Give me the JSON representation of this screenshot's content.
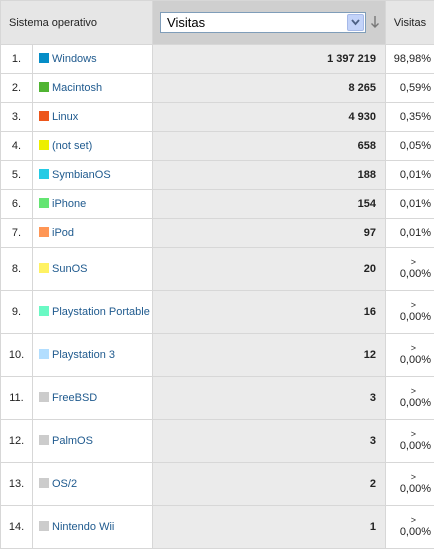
{
  "header": {
    "os_label": "Sistema operativo",
    "metric_select_value": "Visitas",
    "pct_label": "Visitas",
    "sort_icon": "arrow-down-icon",
    "dropdown_icon": "chevron-down-icon"
  },
  "rows": [
    {
      "rank": "1.",
      "os": "Windows",
      "visits": "1 397 219",
      "pct": "98,98%",
      "color": "#058dc7"
    },
    {
      "rank": "2.",
      "os": "Macintosh",
      "visits": "8 265",
      "pct": "0,59%",
      "color": "#50b432"
    },
    {
      "rank": "3.",
      "os": "Linux",
      "visits": "4 930",
      "pct": "0,35%",
      "color": "#ed561b"
    },
    {
      "rank": "4.",
      "os": "(not set)",
      "visits": "658",
      "pct": "0,05%",
      "color": "#edef00"
    },
    {
      "rank": "5.",
      "os": "SymbianOS",
      "visits": "188",
      "pct": "0,01%",
      "color": "#24cbe5"
    },
    {
      "rank": "6.",
      "os": "iPhone",
      "visits": "154",
      "pct": "0,01%",
      "color": "#64e572"
    },
    {
      "rank": "7.",
      "os": "iPod",
      "visits": "97",
      "pct": "0,01%",
      "color": "#ff9655"
    },
    {
      "rank": "8.",
      "os": "SunOS",
      "visits": "20",
      "pct": "0,00%",
      "caret": ">",
      "color": "#fff263"
    },
    {
      "rank": "9.",
      "os": "Playstation Portable",
      "visits": "16",
      "pct": "0,00%",
      "caret": ">",
      "color": "#6af9c4"
    },
    {
      "rank": "10.",
      "os": "Playstation 3",
      "visits": "12",
      "pct": "0,00%",
      "caret": ">",
      "color": "#b2deff"
    },
    {
      "rank": "11.",
      "os": "FreeBSD",
      "visits": "3",
      "pct": "0,00%",
      "caret": ">",
      "color": "#cccccc"
    },
    {
      "rank": "12.",
      "os": "PalmOS",
      "visits": "3",
      "pct": "0,00%",
      "caret": ">",
      "color": "#cccccc"
    },
    {
      "rank": "13.",
      "os": "OS/2",
      "visits": "2",
      "pct": "0,00%",
      "caret": ">",
      "color": "#cccccc"
    },
    {
      "rank": "14.",
      "os": "Nintendo Wii",
      "visits": "1",
      "pct": "0,00%",
      "caret": ">",
      "color": "#cccccc"
    }
  ]
}
